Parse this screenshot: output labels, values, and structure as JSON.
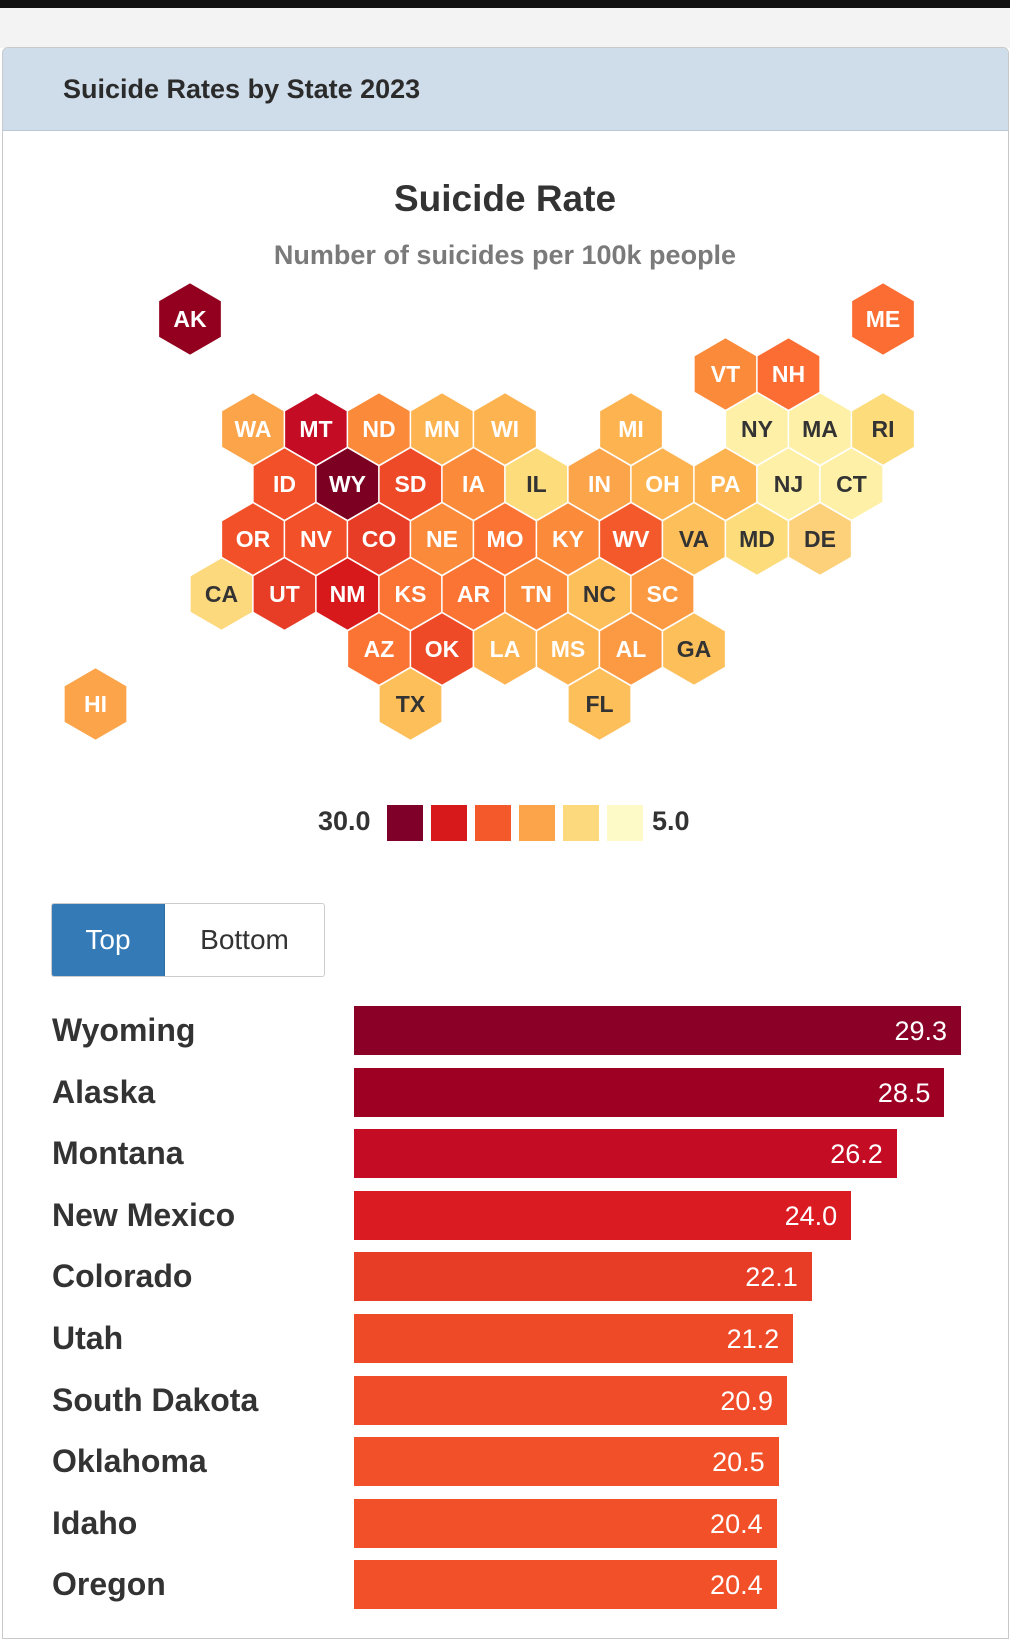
{
  "card": {
    "title": "Suicide Rates by State 2023"
  },
  "chart_data": {
    "type": "hex-tile-map + bar",
    "title": "Suicide Rate",
    "subtitle": "Number of suicides per 100k people",
    "legend": {
      "max_label": "30.0",
      "min_label": "5.0",
      "colors": [
        "#7f0029",
        "#d7191c",
        "#f4592c",
        "#fca44a",
        "#fdd97e",
        "#fefac8"
      ]
    },
    "hex_tiles": [
      {
        "state": "AK",
        "row": 0,
        "col": 1,
        "color": "#93001f"
      },
      {
        "state": "ME",
        "row": 0,
        "col": 12,
        "color": "#fb6d32"
      },
      {
        "state": "VT",
        "row": 1,
        "col": 10,
        "color": "#fb8b3a"
      },
      {
        "state": "NH",
        "row": 1,
        "col": 11,
        "color": "#fb6d32"
      },
      {
        "state": "WA",
        "row": 2,
        "col": 2,
        "color": "#fca44a"
      },
      {
        "state": "MT",
        "row": 2,
        "col": 3,
        "color": "#c40c24"
      },
      {
        "state": "ND",
        "row": 2,
        "col": 4,
        "color": "#fb8b3a"
      },
      {
        "state": "MN",
        "row": 2,
        "col": 5,
        "color": "#fdb450"
      },
      {
        "state": "WI",
        "row": 2,
        "col": 6,
        "color": "#fdb450"
      },
      {
        "state": "MI",
        "row": 2,
        "col": 8,
        "color": "#fdb450"
      },
      {
        "state": "NY",
        "row": 2,
        "col": 10,
        "color": "#fef0a6"
      },
      {
        "state": "MA",
        "row": 2,
        "col": 11,
        "color": "#fef0a6"
      },
      {
        "state": "RI",
        "row": 2,
        "col": 12,
        "color": "#fddc7c"
      },
      {
        "state": "ID",
        "row": 3,
        "col": 3,
        "color": "#f15028"
      },
      {
        "state": "WY",
        "row": 3,
        "col": 4,
        "color": "#7b0022"
      },
      {
        "state": "SD",
        "row": 3,
        "col": 5,
        "color": "#ee4a28"
      },
      {
        "state": "IA",
        "row": 3,
        "col": 6,
        "color": "#fb8b3a"
      },
      {
        "state": "IL",
        "row": 3,
        "col": 7,
        "color": "#fddc7c"
      },
      {
        "state": "IN",
        "row": 3,
        "col": 8,
        "color": "#fca44a"
      },
      {
        "state": "OH",
        "row": 3,
        "col": 9,
        "color": "#fdb450"
      },
      {
        "state": "PA",
        "row": 3,
        "col": 10,
        "color": "#fdb450"
      },
      {
        "state": "NJ",
        "row": 3,
        "col": 11,
        "color": "#fef0a6"
      },
      {
        "state": "CT",
        "row": 3,
        "col": 12,
        "color": "#fef0a6"
      },
      {
        "state": "OR",
        "row": 4,
        "col": 2,
        "color": "#f15028"
      },
      {
        "state": "NV",
        "row": 4,
        "col": 3,
        "color": "#f15028"
      },
      {
        "state": "CO",
        "row": 4,
        "col": 4,
        "color": "#e73d27"
      },
      {
        "state": "NE",
        "row": 4,
        "col": 5,
        "color": "#fb8b3a"
      },
      {
        "state": "MO",
        "row": 4,
        "col": 6,
        "color": "#fb7434"
      },
      {
        "state": "KY",
        "row": 4,
        "col": 7,
        "color": "#fb8b3a"
      },
      {
        "state": "WV",
        "row": 4,
        "col": 8,
        "color": "#f4592c"
      },
      {
        "state": "VA",
        "row": 4,
        "col": 9,
        "color": "#fdbf5a"
      },
      {
        "state": "MD",
        "row": 4,
        "col": 10,
        "color": "#fddc7c"
      },
      {
        "state": "DE",
        "row": 4,
        "col": 11,
        "color": "#fdd07a"
      },
      {
        "state": "CA",
        "row": 5,
        "col": 2,
        "color": "#fdd97e"
      },
      {
        "state": "UT",
        "row": 5,
        "col": 3,
        "color": "#e73d27"
      },
      {
        "state": "NM",
        "row": 5,
        "col": 4,
        "color": "#d7191c"
      },
      {
        "state": "KS",
        "row": 5,
        "col": 5,
        "color": "#fb7434"
      },
      {
        "state": "AR",
        "row": 5,
        "col": 6,
        "color": "#fb7434"
      },
      {
        "state": "TN",
        "row": 5,
        "col": 7,
        "color": "#fb8b3a"
      },
      {
        "state": "NC",
        "row": 5,
        "col": 8,
        "color": "#fdbf5a"
      },
      {
        "state": "SC",
        "row": 5,
        "col": 9,
        "color": "#fb9a43"
      },
      {
        "state": "AZ",
        "row": 6,
        "col": 4,
        "color": "#fb7434"
      },
      {
        "state": "OK",
        "row": 6,
        "col": 5,
        "color": "#ee4a28"
      },
      {
        "state": "LA",
        "row": 6,
        "col": 6,
        "color": "#fdb450"
      },
      {
        "state": "MS",
        "row": 6,
        "col": 7,
        "color": "#fdb450"
      },
      {
        "state": "AL",
        "row": 6,
        "col": 8,
        "color": "#fb9a43"
      },
      {
        "state": "GA",
        "row": 6,
        "col": 9,
        "color": "#fdbf5a"
      },
      {
        "state": "HI",
        "row": 7,
        "col": 0,
        "color": "#fca44a"
      },
      {
        "state": "TX",
        "row": 7,
        "col": 5,
        "color": "#fdbf5a"
      },
      {
        "state": "FL",
        "row": 7,
        "col": 8,
        "color": "#fdbf5a"
      }
    ],
    "bar_ranking": {
      "tabs": [
        "Top",
        "Bottom"
      ],
      "selected_tab": "Top",
      "xlim": [
        0,
        29.3
      ],
      "series": [
        {
          "name": "Wyoming",
          "value": 29.3,
          "label": "29.3",
          "color": "#8b0026"
        },
        {
          "name": "Alaska",
          "value": 28.5,
          "label": "28.5",
          "color": "#9e0024"
        },
        {
          "name": "Montana",
          "value": 26.2,
          "label": "26.2",
          "color": "#c40c24"
        },
        {
          "name": "New Mexico",
          "value": 24.0,
          "label": "24.0",
          "color": "#da1c22"
        },
        {
          "name": "Colorado",
          "value": 22.1,
          "label": "22.1",
          "color": "#e73d27"
        },
        {
          "name": "Utah",
          "value": 21.2,
          "label": "21.2",
          "color": "#ee4a28"
        },
        {
          "name": "South Dakota",
          "value": 20.9,
          "label": "20.9",
          "color": "#f04c29"
        },
        {
          "name": "Oklahoma",
          "value": 20.5,
          "label": "20.5",
          "color": "#f15028"
        },
        {
          "name": "Idaho",
          "value": 20.4,
          "label": "20.4",
          "color": "#f15028"
        },
        {
          "name": "Oregon",
          "value": 20.4,
          "label": "20.4",
          "color": "#f15028"
        }
      ]
    }
  }
}
